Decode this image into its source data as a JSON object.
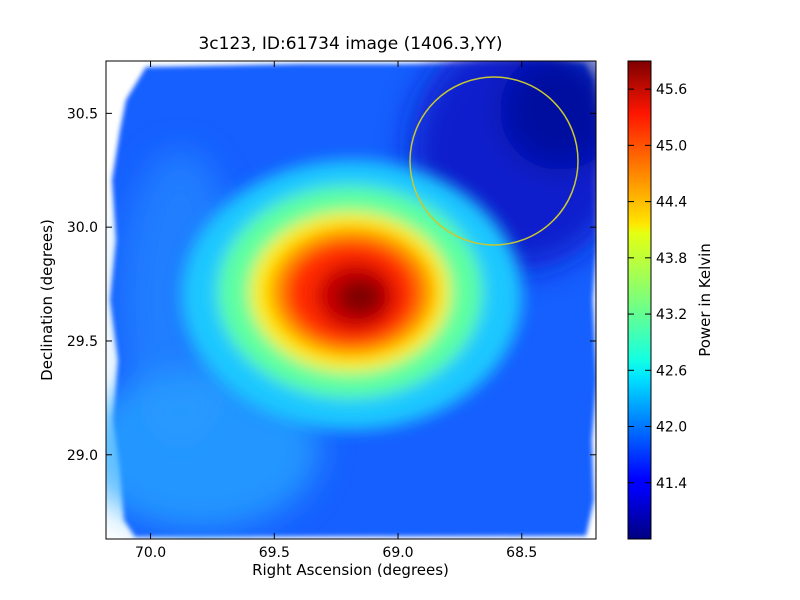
{
  "chart_data": {
    "type": "heatmap",
    "title": "3c123, ID:61734 image (1406.3,YY)",
    "xlabel": "Right Ascension (degrees)",
    "ylabel": "Declination (degrees)",
    "colorbar_label": "Power in Kelvin",
    "x_ticks": [
      "70.0",
      "69.5",
      "69.0",
      "68.5"
    ],
    "y_ticks": [
      "29.0",
      "29.5",
      "30.0",
      "30.5"
    ],
    "colorbar_ticks": [
      "41.4",
      "42.0",
      "42.6",
      "43.2",
      "43.8",
      "44.4",
      "45.0",
      "45.6"
    ],
    "xlim": [
      70.18,
      68.2
    ],
    "ylim": [
      28.63,
      30.73
    ],
    "colorbar_range": [
      40.8,
      45.9
    ],
    "colormap": "jet",
    "peak": {
      "ra": 69.25,
      "dec": 29.7,
      "value": 45.9
    },
    "background_level": 41.5,
    "circle": {
      "ra": 68.65,
      "dec": 30.28,
      "radius_deg": 0.37,
      "color": "#c8c832"
    },
    "grid": false
  }
}
